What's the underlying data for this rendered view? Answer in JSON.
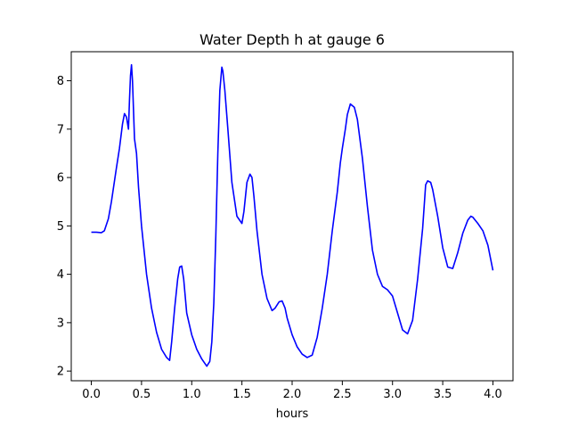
{
  "chart_data": {
    "type": "line",
    "title": "Water Depth h at gauge 6",
    "xlabel": "hours",
    "ylabel": "",
    "xlim": [
      -0.2,
      4.2
    ],
    "ylim": [
      1.8,
      8.6
    ],
    "xticks": [
      0.0,
      0.5,
      1.0,
      1.5,
      2.0,
      2.5,
      3.0,
      3.5,
      4.0
    ],
    "xtick_labels": [
      "0.0",
      "0.5",
      "1.0",
      "1.5",
      "2.0",
      "2.5",
      "3.0",
      "3.5",
      "4.0"
    ],
    "yticks": [
      2,
      3,
      4,
      5,
      6,
      7,
      8
    ],
    "ytick_labels": [
      "2",
      "3",
      "4",
      "5",
      "6",
      "7",
      "8"
    ],
    "grid": false,
    "series": [
      {
        "color": "#0000ff",
        "x": [
          0.0,
          0.05,
          0.1,
          0.13,
          0.17,
          0.2,
          0.25,
          0.28,
          0.31,
          0.33,
          0.35,
          0.37,
          0.38,
          0.39,
          0.4,
          0.41,
          0.42,
          0.43,
          0.45,
          0.47,
          0.5,
          0.55,
          0.6,
          0.65,
          0.7,
          0.75,
          0.78,
          0.8,
          0.83,
          0.86,
          0.88,
          0.9,
          0.92,
          0.95,
          1.0,
          1.05,
          1.1,
          1.15,
          1.18,
          1.2,
          1.22,
          1.24,
          1.26,
          1.28,
          1.3,
          1.31,
          1.33,
          1.36,
          1.4,
          1.45,
          1.5,
          1.52,
          1.55,
          1.58,
          1.6,
          1.62,
          1.65,
          1.7,
          1.75,
          1.8,
          1.83,
          1.87,
          1.9,
          1.93,
          1.95,
          2.0,
          2.05,
          2.1,
          2.15,
          2.2,
          2.25,
          2.3,
          2.35,
          2.4,
          2.45,
          2.48,
          2.5,
          2.53,
          2.55,
          2.58,
          2.62,
          2.65,
          2.7,
          2.75,
          2.8,
          2.85,
          2.9,
          2.95,
          3.0,
          3.05,
          3.1,
          3.15,
          3.2,
          3.25,
          3.3,
          3.33,
          3.35,
          3.38,
          3.4,
          3.45,
          3.5,
          3.55,
          3.6,
          3.65,
          3.7,
          3.75,
          3.78,
          3.8,
          3.85,
          3.9,
          3.95,
          4.0
        ],
        "y": [
          4.87,
          4.87,
          4.86,
          4.9,
          5.15,
          5.5,
          6.2,
          6.6,
          7.1,
          7.32,
          7.25,
          7.0,
          7.6,
          8.1,
          8.33,
          8.0,
          7.4,
          6.8,
          6.5,
          5.8,
          5.0,
          4.0,
          3.3,
          2.8,
          2.45,
          2.28,
          2.22,
          2.6,
          3.3,
          3.9,
          4.15,
          4.17,
          3.9,
          3.2,
          2.75,
          2.45,
          2.25,
          2.1,
          2.2,
          2.6,
          3.4,
          4.8,
          6.5,
          7.8,
          8.28,
          8.2,
          7.8,
          7.0,
          5.9,
          5.2,
          5.05,
          5.3,
          5.9,
          6.07,
          6.0,
          5.6,
          4.9,
          4.0,
          3.5,
          3.25,
          3.3,
          3.43,
          3.45,
          3.3,
          3.1,
          2.75,
          2.5,
          2.35,
          2.28,
          2.33,
          2.7,
          3.3,
          4.0,
          4.9,
          5.7,
          6.3,
          6.6,
          7.0,
          7.3,
          7.52,
          7.45,
          7.2,
          6.4,
          5.4,
          4.5,
          4.0,
          3.75,
          3.68,
          3.55,
          3.2,
          2.85,
          2.77,
          3.05,
          3.9,
          4.95,
          5.85,
          5.93,
          5.9,
          5.75,
          5.2,
          4.55,
          4.15,
          4.12,
          4.45,
          4.85,
          5.12,
          5.2,
          5.18,
          5.05,
          4.9,
          4.6,
          4.08
        ]
      }
    ]
  }
}
